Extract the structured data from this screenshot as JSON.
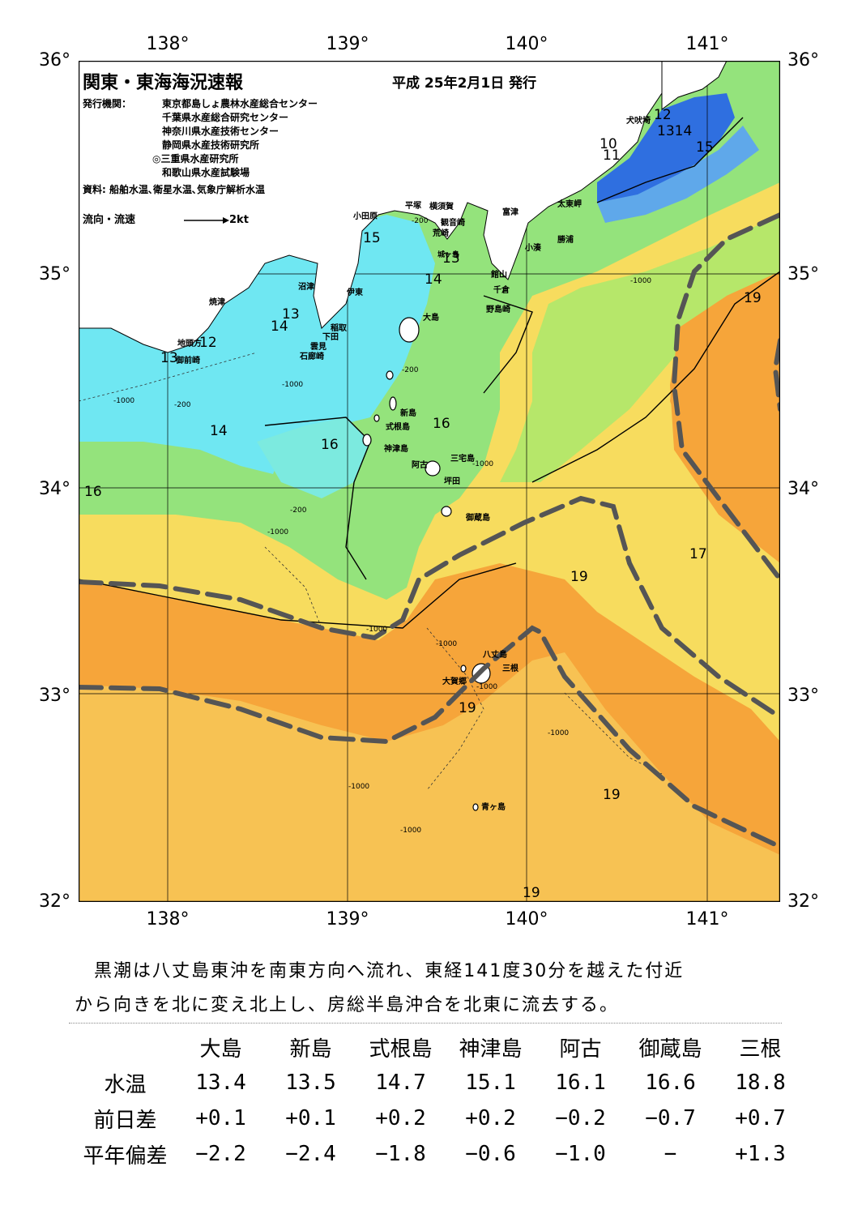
{
  "title": "関東・東海海況速報",
  "issue_date": "平成 25年2月1日 発行",
  "publisher_label": "発行機関：",
  "publishers": [
    "東京都島しょ農林水産総合センター",
    "千葉県水産総合研究センター",
    "神奈川県水産技術センター",
    "静岡県水産技術研究所",
    "◎三重県水産研究所",
    "和歌山県水産試験場"
  ],
  "source": "資料: 船舶水温､衛星水温､気象庁解析水温",
  "legend": {
    "label": "流向・流速",
    "speed": "2kt"
  },
  "axes": {
    "longitude": [
      "138°",
      "139°",
      "140°",
      "141°"
    ],
    "latitude": [
      "36°",
      "35°",
      "34°",
      "33°",
      "32°"
    ]
  },
  "places": [
    "犬吠埼",
    "太東岬",
    "勝浦",
    "小湊",
    "富津",
    "館山",
    "千倉",
    "野島崎",
    "観音崎",
    "荒崎",
    "平塚",
    "横須賀",
    "小田原",
    "城ヶ島",
    "沼津",
    "伊東",
    "稲取",
    "下田",
    "雲見",
    "石廊崎",
    "焼津",
    "地頭方",
    "御前崎",
    "大島",
    "新島",
    "式根島",
    "神津島",
    "阿古",
    "三宅島",
    "坪田",
    "御蔵島",
    "八丈島",
    "三根",
    "大賀郷",
    "青ヶ島"
  ],
  "isotherm_labels": [
    "12",
    "1314",
    "15",
    "10",
    "11",
    "15",
    "13",
    "14",
    "13",
    "14",
    "12",
    "13",
    "14",
    "16",
    "16",
    "16",
    "19",
    "17",
    "19",
    "19",
    "19",
    "19"
  ],
  "depth_labels": [
    "-200",
    "-200",
    "-1000",
    "-1000",
    "-200",
    "-1000",
    "-200",
    "-1000",
    "-1000",
    "-1000",
    "-1000",
    "-1000",
    "-1000",
    "-1000",
    "-1000"
  ],
  "colors": {
    "cold": "#2f6fe0",
    "cyan": "#6fe7f2",
    "green": "#94e37c",
    "yellow": "#f7dc5e",
    "orange": "#f6a53a",
    "kuroshio": "#555555"
  },
  "summary": [
    "　黒潮は八丈島東沖を南東方向へ流れ、東経141度30分を越えた付近",
    "から向きを北に変え北上し、房総半島沖合を北東に流去する。"
  ],
  "table": {
    "columns": [
      "大島",
      "新島",
      "式根島",
      "神津島",
      "阿古",
      "御蔵島",
      "三根"
    ],
    "rows": [
      {
        "label": "水温",
        "values": [
          "13.4",
          "13.5",
          "14.7",
          "15.1",
          "16.1",
          "16.6",
          "18.8"
        ]
      },
      {
        "label": "前日差",
        "values": [
          "+0.1",
          "+0.1",
          "+0.2",
          "+0.2",
          "−0.2",
          "−0.7",
          "+0.7"
        ]
      },
      {
        "label": "平年偏差",
        "values": [
          "−2.2",
          "−2.4",
          "−1.8",
          "−0.6",
          "−1.0",
          "−",
          "+1.3"
        ]
      }
    ]
  }
}
